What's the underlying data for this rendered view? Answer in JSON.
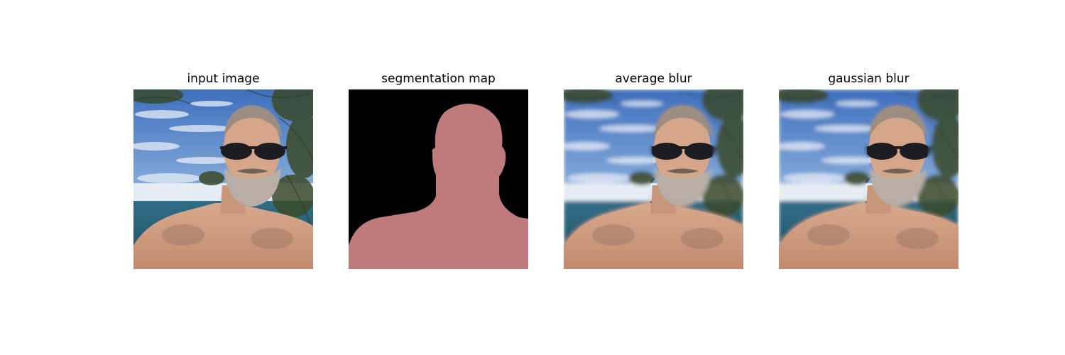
{
  "panels": [
    {
      "title": "input image",
      "kind": "photo",
      "blur": "none"
    },
    {
      "title": "segmentation map",
      "kind": "mask"
    },
    {
      "title": "average blur",
      "kind": "photo",
      "blur": "average"
    },
    {
      "title": "gaussian blur",
      "kind": "photo",
      "blur": "gaussian"
    }
  ],
  "colors": {
    "mask_foreground": "#bf7b7b",
    "mask_background": "#000000"
  }
}
